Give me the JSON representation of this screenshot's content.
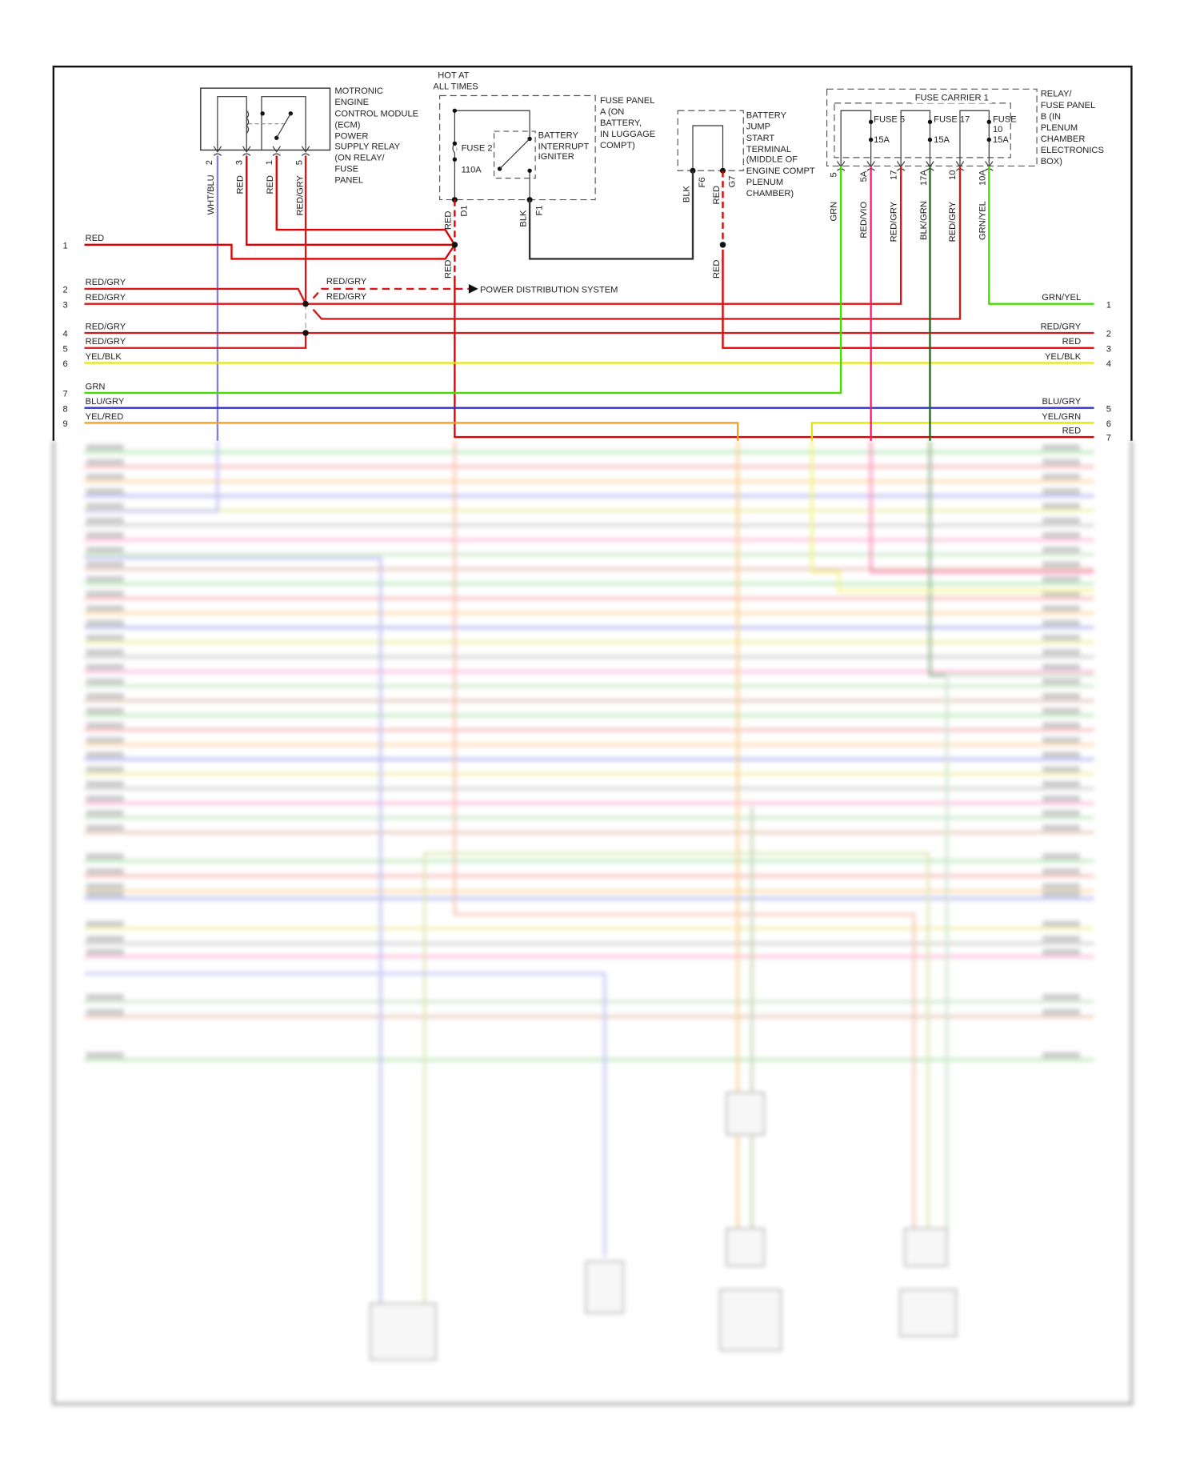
{
  "colors": {
    "red": "#e00000",
    "red_gry": "#d81818",
    "grn": "#44dd00",
    "blu_gry": "#3030c8",
    "wht_blu": "#8080e0",
    "yel": "#e6e600",
    "yel_red": "#f0a020",
    "red_vio": "#ff1a70",
    "blk_grn": "#1f6a1f",
    "blk": "#333333"
  },
  "ecm_relay": {
    "label_lines": [
      "MOTRONIC",
      "ENGINE",
      "CONTROL MODULE",
      "(ECM)",
      "POWER",
      "SUPPLY RELAY",
      "(ON RELAY/",
      "FUSE",
      "PANEL"
    ],
    "pins": [
      "2",
      "3",
      "1",
      "5"
    ],
    "wires": [
      "WHT/BLU",
      "RED",
      "RED",
      "RED/GRY"
    ]
  },
  "hot_at_all_times": [
    "HOT AT",
    "ALL TIMES"
  ],
  "fuse_panel_a": {
    "label_lines": [
      "FUSE PANEL",
      "A (ON",
      "BATTERY,",
      "IN LUGGAGE",
      "COMPT)"
    ],
    "fuse": "FUSE 2",
    "rating": "110A",
    "interrupt_lines": [
      "BATTERY",
      "INTERRUPT",
      "IGNITER"
    ],
    "pins": [
      "D1",
      "F1"
    ],
    "wires": [
      "RED",
      "BLK",
      "RED"
    ]
  },
  "jump_start": {
    "label_lines": [
      "BATTERY",
      "JUMP",
      "START",
      "TERMINAL",
      "(MIDDLE OF",
      "ENGINE COMPT",
      "PLENUM",
      "CHAMBER)"
    ],
    "pins": [
      "F6",
      "G7"
    ],
    "wires": [
      "BLK",
      "RED",
      "RED"
    ]
  },
  "fuse_panel_b": {
    "carrier": "FUSE CARRIER 1",
    "label_lines": [
      "RELAY/",
      "FUSE PANEL",
      "B (IN",
      "PLENUM",
      "CHAMBER",
      "ELECTRONICS",
      "BOX)"
    ],
    "fuses": [
      {
        "name": "FUSE 5",
        "rating": "15A"
      },
      {
        "name": "FUSE 17",
        "rating": "15A"
      },
      {
        "name_lines": [
          "FUSE",
          "10"
        ],
        "rating": "15A"
      }
    ],
    "pins": [
      "5",
      "5A",
      "17",
      "17A",
      "10",
      "10A"
    ],
    "wires": [
      "GRN",
      "RED/VIO",
      "RED/GRY",
      "BLK/GRN",
      "RED/GRY",
      "GRN/YEL"
    ]
  },
  "splice_labels": [
    "RED/GRY",
    "RED/GRY"
  ],
  "power_distribution": "POWER DISTRIBUTION SYSTEM",
  "left_rows": [
    {
      "num": "1",
      "label": "RED"
    },
    {
      "num": "2",
      "label": "RED/GRY"
    },
    {
      "num": "3",
      "label": "RED/GRY"
    },
    {
      "num": "4",
      "label": "RED/GRY"
    },
    {
      "num": "5",
      "label": "RED/GRY"
    },
    {
      "num": "6",
      "label": "YEL/BLK"
    },
    {
      "num": "7",
      "label": "GRN"
    },
    {
      "num": "8",
      "label": "BLU/GRY"
    },
    {
      "num": "9",
      "label": "YEL/RED"
    }
  ],
  "right_rows": [
    {
      "num": "1",
      "label": "GRN/YEL"
    },
    {
      "num": "2",
      "label": "RED/GRY"
    },
    {
      "num": "3",
      "label": "RED"
    },
    {
      "num": "4",
      "label": "YEL/BLK"
    },
    {
      "num": "5",
      "label": "BLU/GRY"
    },
    {
      "num": "6",
      "label": "YEL/GRN"
    },
    {
      "num": "7",
      "label": "RED"
    }
  ]
}
